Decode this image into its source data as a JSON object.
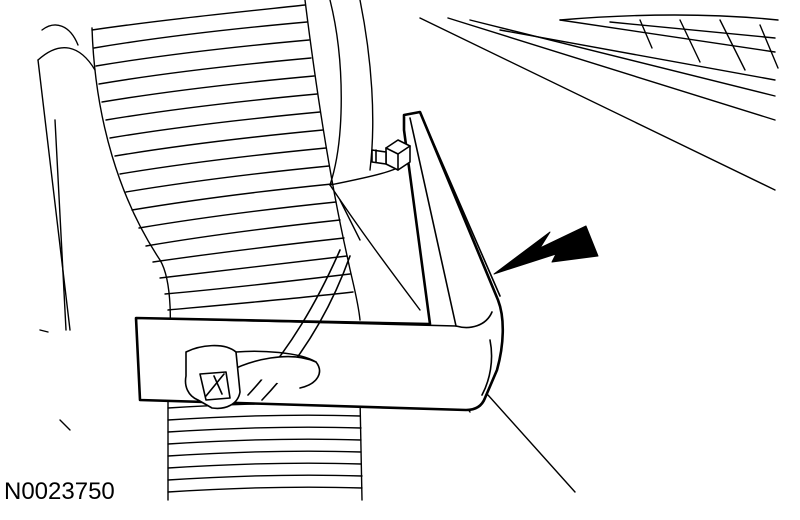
{
  "figure": {
    "id_label": "N0023750"
  },
  "colors": {
    "line": "#000000",
    "fill": "#ffffff"
  }
}
